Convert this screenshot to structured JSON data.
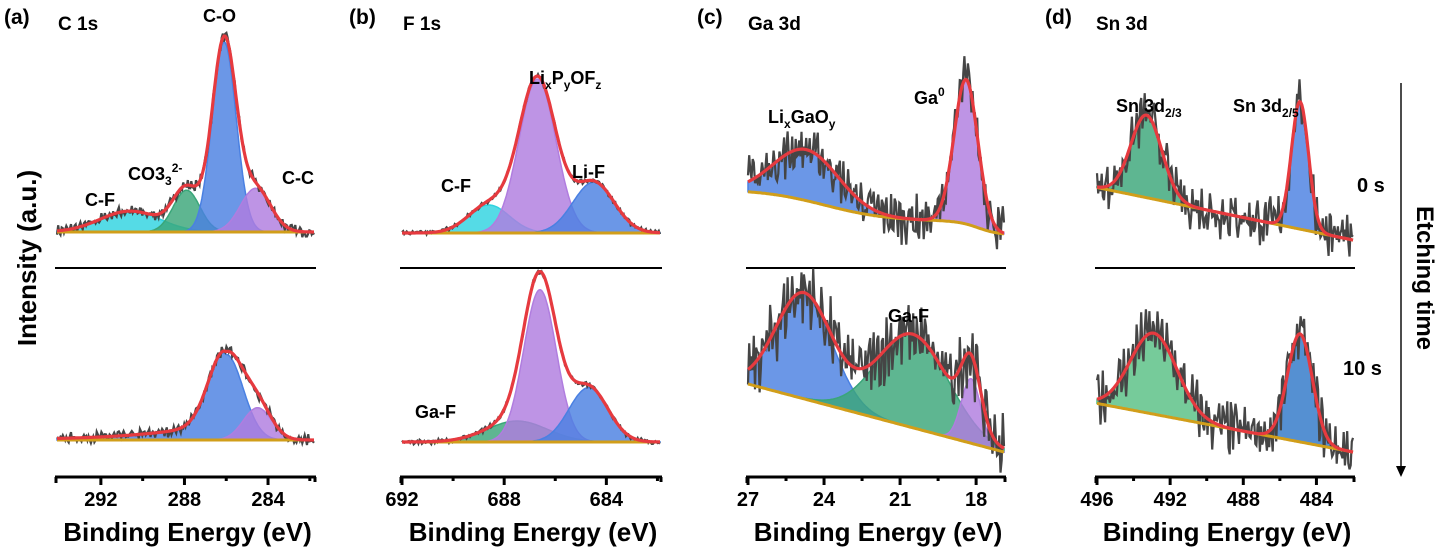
{
  "figure": {
    "ylabel": "Intensity (a.u.)",
    "xlabel": "Binding Energy (eV)",
    "etching_label": "Etching time",
    "time_labels": [
      "0 s",
      "10 s"
    ]
  },
  "colors": {
    "raw": "#454545",
    "envelope": "#e63a3f",
    "baseline": "#d19e1a",
    "blue": "#4a80e2",
    "purple": "#b07ddf",
    "green": "#3aa679",
    "lightgreen": "#58c084",
    "cyan": "#2fd3e0",
    "darkblue": "#2f78c8"
  },
  "chart_data": [
    {
      "type": "area",
      "panel": "(a)",
      "title": "C 1s",
      "xlabel": "Binding Energy (eV)",
      "ylabel": "Intensity (a.u.)",
      "xlim": [
        294.1,
        281.8
      ],
      "xticks": [
        292,
        288,
        284
      ],
      "xticks_minor": [
        290,
        286,
        282
      ],
      "spectra": [
        {
          "etch_time": "0 s",
          "baseline": [
            0.0,
            0.0
          ],
          "noise": 0.02,
          "peaks": [
            {
              "name": "C-F",
              "label": "C-F",
              "center": 290.6,
              "height": 0.11,
              "fwhm": 3.4,
              "color": "cyan"
            },
            {
              "name": "CO3 2-",
              "label": "CO3",
              "label_sub": "3",
              "label_sup": "2-",
              "center": 287.9,
              "height": 0.22,
              "fwhm": 1.5,
              "color": "green"
            },
            {
              "name": "C-O",
              "label": "C-O",
              "center": 286.1,
              "height": 1.0,
              "fwhm": 1.35,
              "color": "blue"
            },
            {
              "name": "C-C",
              "label": "C-C",
              "center": 284.6,
              "height": 0.23,
              "fwhm": 1.7,
              "color": "purple"
            }
          ]
        },
        {
          "etch_time": "10 s",
          "baseline": [
            0.0,
            0.0
          ],
          "noise": 0.02,
          "peaks": [
            {
              "name": "C-O",
              "label": "",
              "center": 286.0,
              "height": 0.45,
              "fwhm": 1.9,
              "tail": 0.12,
              "color": "blue"
            },
            {
              "name": "C-C",
              "label": "",
              "center": 284.5,
              "height": 0.17,
              "fwhm": 1.6,
              "color": "purple"
            }
          ]
        }
      ]
    },
    {
      "type": "area",
      "panel": "(b)",
      "title": "F 1s",
      "xlabel": "Binding Energy (eV)",
      "ylabel": "Intensity (a.u.)",
      "xlim": [
        692.0,
        681.9
      ],
      "xticks": [
        692,
        688,
        684
      ],
      "xticks_minor": [
        690,
        686,
        682
      ],
      "spectra": [
        {
          "etch_time": "0 s",
          "baseline": [
            0.0,
            0.0
          ],
          "noise": 0.01,
          "peaks": [
            {
              "name": "C-F",
              "label": "C-F",
              "center": 688.6,
              "height": 0.16,
              "fwhm": 1.9,
              "color": "cyan"
            },
            {
              "name": "LixPyOFz",
              "label": "LixPyOFz",
              "center": 686.7,
              "height": 0.88,
              "fwhm": 1.7,
              "color": "purple"
            },
            {
              "name": "Li-F",
              "label": "Li-F",
              "center": 684.5,
              "height": 0.29,
              "fwhm": 1.9,
              "color": "blue"
            }
          ]
        },
        {
          "etch_time": "10 s",
          "baseline": [
            0.0,
            0.0
          ],
          "noise": 0.01,
          "peaks": [
            {
              "name": "Ga-F",
              "label": "Ga-F",
              "center": 687.5,
              "height": 0.12,
              "fwhm": 2.8,
              "color": "green"
            },
            {
              "name": "LixPyOFz",
              "label": "",
              "center": 686.6,
              "height": 0.87,
              "fwhm": 1.5,
              "color": "purple"
            },
            {
              "name": "Li-F",
              "label": "",
              "center": 684.7,
              "height": 0.31,
              "fwhm": 1.8,
              "color": "blue"
            }
          ]
        }
      ]
    },
    {
      "type": "area",
      "panel": "(c)",
      "title": "Ga 3d",
      "xlabel": "Binding Energy (eV)",
      "ylabel": "Intensity (a.u.)",
      "xlim": [
        27.0,
        16.9
      ],
      "xticks": [
        27,
        24,
        21,
        18
      ],
      "xticks_minor": [
        25.5,
        22.5,
        19.5
      ],
      "spectra": [
        {
          "etch_time": "0 s",
          "baseline": [
            0.27,
            0.0
          ],
          "baseline_shape": "step",
          "noise": 0.1,
          "peaks": [
            {
              "name": "LixGaOy",
              "label": "LixGaOy",
              "center": 24.7,
              "height": 0.3,
              "fwhm": 3.0,
              "color": "blue"
            },
            {
              "name": "Ga0",
              "label": "Ga",
              "label_sup": "0",
              "center": 18.4,
              "height": 0.85,
              "fwhm": 1.1,
              "color": "purple"
            }
          ]
        },
        {
          "etch_time": "10 s",
          "baseline": [
            0.4,
            0.0
          ],
          "noise": 0.14,
          "peaks": [
            {
              "name": "LixGaOy",
              "label": "",
              "center": 24.8,
              "height": 0.62,
              "fwhm": 2.6,
              "color": "blue"
            },
            {
              "name": "Ga-F",
              "label": "Ga-F",
              "center": 20.5,
              "height": 0.55,
              "fwhm": 3.3,
              "color": "green"
            },
            {
              "name": "Ga0",
              "label": "",
              "center": 18.2,
              "height": 0.38,
              "fwhm": 0.9,
              "color": "purple"
            }
          ]
        }
      ]
    },
    {
      "type": "area",
      "panel": "(d)",
      "title": "Sn 3d",
      "xlabel": "Binding Energy (eV)",
      "ylabel": "Intensity (a.u.)",
      "xlim": [
        496.0,
        482.0
      ],
      "xticks": [
        496,
        492,
        488,
        484
      ],
      "xticks_minor": [
        494,
        490,
        486
      ],
      "spectra": [
        {
          "etch_time": "0 s",
          "baseline": [
            0.35,
            0.0
          ],
          "noise": 0.12,
          "peaks": [
            {
              "name": "Sn 3d 2/3",
              "label": "Sn 3d",
              "label_sub": "2/3",
              "center": 493.3,
              "height": 0.55,
              "fwhm": 2.0,
              "color": "green"
            },
            {
              "name": "Sn 3d 2/5",
              "label": "Sn 3d",
              "label_sub": "2/5",
              "center": 484.9,
              "height": 0.85,
              "fwhm": 1.1,
              "color": "blue"
            }
          ]
        },
        {
          "etch_time": "10 s",
          "baseline": [
            0.45,
            0.0
          ],
          "noise": 0.18,
          "peaks": [
            {
              "name": "Sn 3d 2/3",
              "label": "",
              "center": 492.9,
              "height": 0.75,
              "fwhm": 3.0,
              "color": "lightgreen"
            },
            {
              "name": "Sn 3d 2/5",
              "label": "",
              "center": 484.9,
              "height": 1.0,
              "fwhm": 1.6,
              "color": "darkblue"
            }
          ]
        }
      ]
    }
  ]
}
